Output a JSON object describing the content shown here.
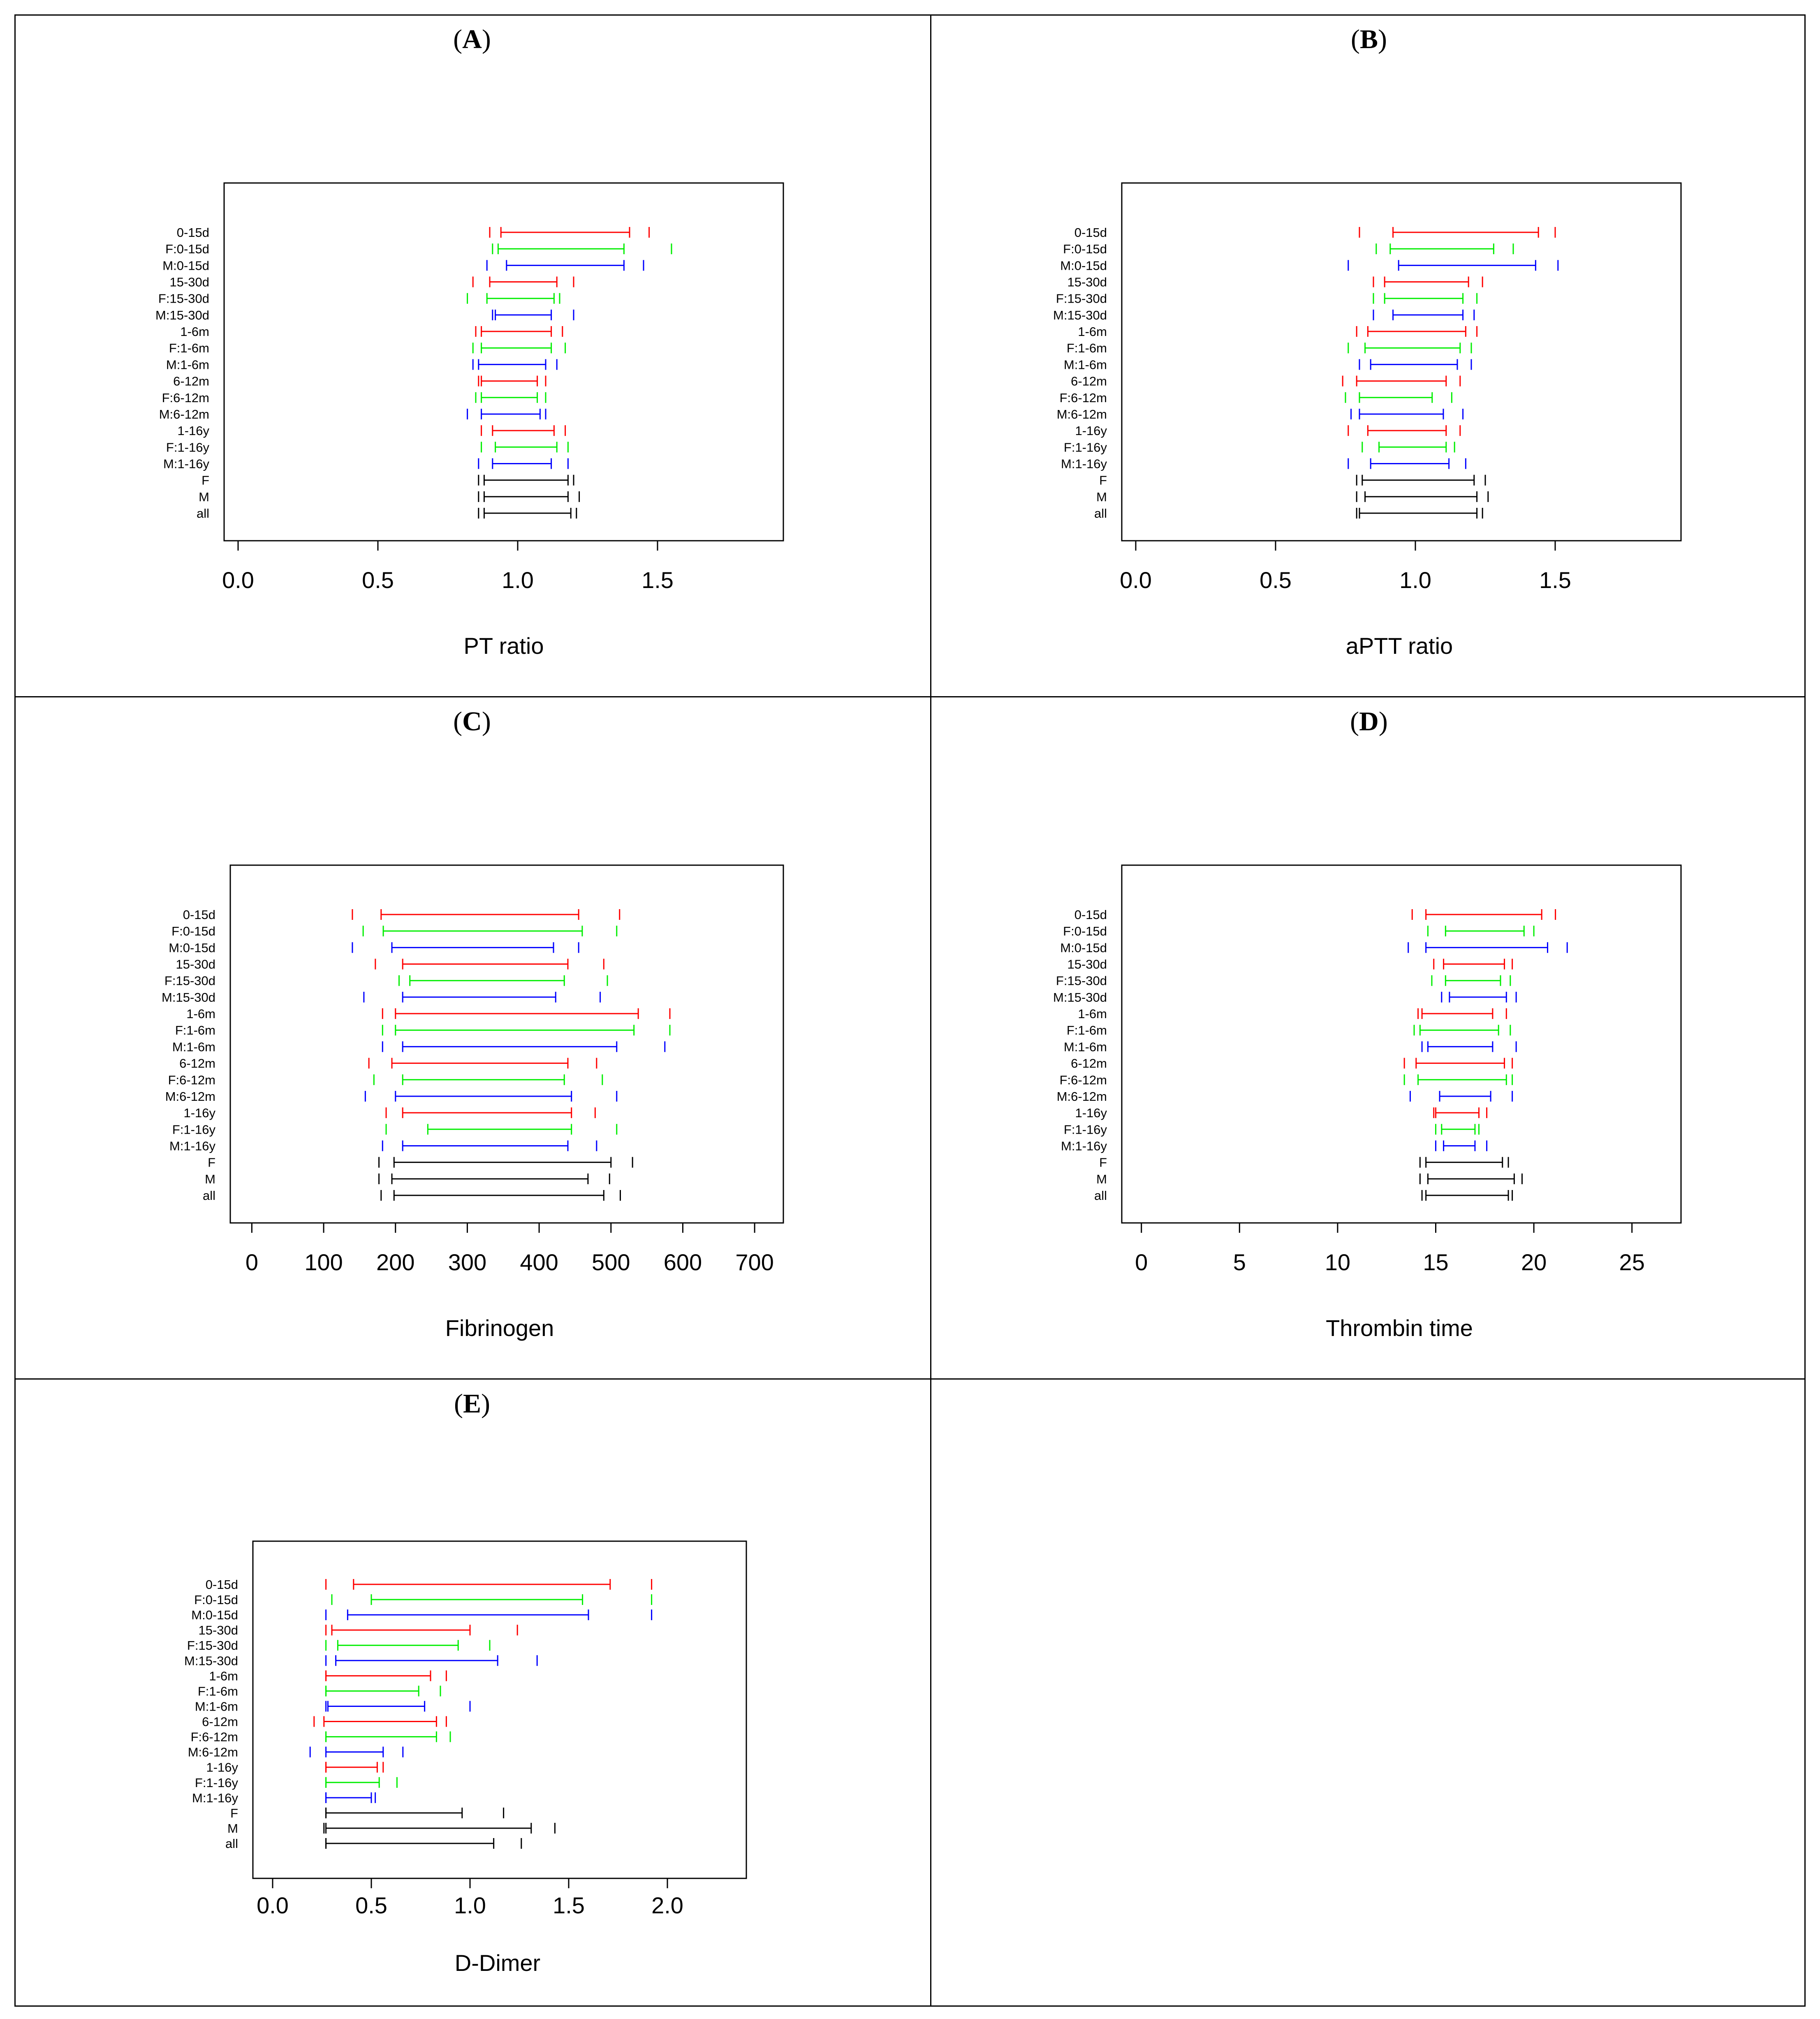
{
  "colors": {
    "red": "#ff0000",
    "green": "#00ee00",
    "blue": "#0000ff",
    "black": "#000000"
  },
  "chart_data": [
    {
      "panel": "A",
      "type": "interval",
      "xlabel": "PT ratio",
      "xlim": [
        -0.05,
        1.95
      ],
      "xticks": [
        0.0,
        0.5,
        1.0,
        1.5
      ],
      "xtick_labels": [
        "0.0",
        "0.5",
        "1.0",
        "1.5"
      ],
      "series": [
        {
          "category": "0-15d",
          "color": "red",
          "values": [
            0.9,
            0.94,
            1.4,
            1.47
          ]
        },
        {
          "category": "F:0-15d",
          "color": "green",
          "values": [
            0.91,
            0.93,
            1.38,
            1.55
          ]
        },
        {
          "category": "M:0-15d",
          "color": "blue",
          "values": [
            0.89,
            0.96,
            1.38,
            1.45
          ]
        },
        {
          "category": "15-30d",
          "color": "red",
          "values": [
            0.84,
            0.9,
            1.14,
            1.2
          ]
        },
        {
          "category": "F:15-30d",
          "color": "green",
          "values": [
            0.82,
            0.89,
            1.13,
            1.15
          ]
        },
        {
          "category": "M:15-30d",
          "color": "blue",
          "values": [
            0.91,
            0.92,
            1.12,
            1.2
          ]
        },
        {
          "category": "1-6m",
          "color": "red",
          "values": [
            0.85,
            0.87,
            1.12,
            1.16
          ]
        },
        {
          "category": "F:1-6m",
          "color": "green",
          "values": [
            0.84,
            0.87,
            1.12,
            1.17
          ]
        },
        {
          "category": "M:1-6m",
          "color": "blue",
          "values": [
            0.84,
            0.86,
            1.1,
            1.14
          ]
        },
        {
          "category": "6-12m",
          "color": "red",
          "values": [
            0.86,
            0.87,
            1.07,
            1.1
          ]
        },
        {
          "category": "F:6-12m",
          "color": "green",
          "values": [
            0.85,
            0.87,
            1.07,
            1.1
          ]
        },
        {
          "category": "M:6-12m",
          "color": "blue",
          "values": [
            0.82,
            0.87,
            1.08,
            1.1
          ]
        },
        {
          "category": "1-16y",
          "color": "red",
          "values": [
            0.87,
            0.91,
            1.13,
            1.17
          ]
        },
        {
          "category": "F:1-16y",
          "color": "green",
          "values": [
            0.87,
            0.92,
            1.14,
            1.18
          ]
        },
        {
          "category": "M:1-16y",
          "color": "blue",
          "values": [
            0.86,
            0.91,
            1.12,
            1.18
          ]
        },
        {
          "category": "F",
          "color": "black",
          "values": [
            0.86,
            0.88,
            1.18,
            1.2
          ]
        },
        {
          "category": "M",
          "color": "black",
          "values": [
            0.86,
            0.88,
            1.18,
            1.22
          ]
        },
        {
          "category": "all",
          "color": "black",
          "values": [
            0.86,
            0.88,
            1.19,
            1.21
          ]
        }
      ]
    },
    {
      "panel": "B",
      "type": "interval",
      "xlabel": "aPTT ratio",
      "xlim": [
        -0.05,
        1.95
      ],
      "xticks": [
        0.0,
        0.5,
        1.0,
        1.5
      ],
      "xtick_labels": [
        "0.0",
        "0.5",
        "1.0",
        "1.5"
      ],
      "series": [
        {
          "category": "0-15d",
          "color": "red",
          "values": [
            0.8,
            0.92,
            1.44,
            1.5
          ]
        },
        {
          "category": "F:0-15d",
          "color": "green",
          "values": [
            0.86,
            0.91,
            1.28,
            1.35
          ]
        },
        {
          "category": "M:0-15d",
          "color": "blue",
          "values": [
            0.76,
            0.94,
            1.43,
            1.51
          ]
        },
        {
          "category": "15-30d",
          "color": "red",
          "values": [
            0.85,
            0.89,
            1.19,
            1.24
          ]
        },
        {
          "category": "F:15-30d",
          "color": "green",
          "values": [
            0.85,
            0.89,
            1.17,
            1.22
          ]
        },
        {
          "category": "M:15-30d",
          "color": "blue",
          "values": [
            0.85,
            0.92,
            1.17,
            1.21
          ]
        },
        {
          "category": "1-6m",
          "color": "red",
          "values": [
            0.79,
            0.83,
            1.18,
            1.22
          ]
        },
        {
          "category": "F:1-6m",
          "color": "green",
          "values": [
            0.76,
            0.82,
            1.16,
            1.2
          ]
        },
        {
          "category": "M:1-6m",
          "color": "blue",
          "values": [
            0.8,
            0.84,
            1.15,
            1.2
          ]
        },
        {
          "category": "6-12m",
          "color": "red",
          "values": [
            0.74,
            0.79,
            1.11,
            1.16
          ]
        },
        {
          "category": "F:6-12m",
          "color": "green",
          "values": [
            0.75,
            0.8,
            1.06,
            1.13
          ]
        },
        {
          "category": "M:6-12m",
          "color": "blue",
          "values": [
            0.77,
            0.8,
            1.1,
            1.17
          ]
        },
        {
          "category": "1-16y",
          "color": "red",
          "values": [
            0.76,
            0.83,
            1.11,
            1.16
          ]
        },
        {
          "category": "F:1-16y",
          "color": "green",
          "values": [
            0.81,
            0.87,
            1.11,
            1.14
          ]
        },
        {
          "category": "M:1-16y",
          "color": "blue",
          "values": [
            0.76,
            0.84,
            1.12,
            1.18
          ]
        },
        {
          "category": "F",
          "color": "black",
          "values": [
            0.79,
            0.81,
            1.21,
            1.25
          ]
        },
        {
          "category": "M",
          "color": "black",
          "values": [
            0.79,
            0.82,
            1.22,
            1.26
          ]
        },
        {
          "category": "all",
          "color": "black",
          "values": [
            0.79,
            0.8,
            1.22,
            1.24
          ]
        }
      ]
    },
    {
      "panel": "C",
      "type": "interval",
      "xlabel": "Fibrinogen",
      "xlim": [
        -30,
        740
      ],
      "xticks": [
        0,
        100,
        200,
        300,
        400,
        500,
        600,
        700
      ],
      "xtick_labels": [
        "0",
        "100",
        "200",
        "300",
        "400",
        "500",
        "600",
        "700"
      ],
      "series": [
        {
          "category": "0-15d",
          "color": "red",
          "values": [
            140,
            180,
            455,
            512
          ]
        },
        {
          "category": "F:0-15d",
          "color": "green",
          "values": [
            155,
            183,
            460,
            508
          ]
        },
        {
          "category": "M:0-15d",
          "color": "blue",
          "values": [
            140,
            195,
            420,
            455
          ]
        },
        {
          "category": "15-30d",
          "color": "red",
          "values": [
            172,
            210,
            440,
            490
          ]
        },
        {
          "category": "F:15-30d",
          "color": "green",
          "values": [
            205,
            220,
            435,
            495
          ]
        },
        {
          "category": "M:15-30d",
          "color": "blue",
          "values": [
            156,
            210,
            423,
            485
          ]
        },
        {
          "category": "1-6m",
          "color": "red",
          "values": [
            182,
            200,
            538,
            582
          ]
        },
        {
          "category": "F:1-6m",
          "color": "green",
          "values": [
            182,
            200,
            532,
            582
          ]
        },
        {
          "category": "M:1-6m",
          "color": "blue",
          "values": [
            182,
            210,
            508,
            575
          ]
        },
        {
          "category": "6-12m",
          "color": "red",
          "values": [
            163,
            195,
            440,
            480
          ]
        },
        {
          "category": "F:6-12m",
          "color": "green",
          "values": [
            170,
            210,
            435,
            488
          ]
        },
        {
          "category": "M:6-12m",
          "color": "blue",
          "values": [
            158,
            200,
            445,
            508
          ]
        },
        {
          "category": "1-16y",
          "color": "red",
          "values": [
            187,
            210,
            445,
            478
          ]
        },
        {
          "category": "F:1-16y",
          "color": "green",
          "values": [
            187,
            245,
            445,
            508
          ]
        },
        {
          "category": "M:1-16y",
          "color": "blue",
          "values": [
            182,
            210,
            440,
            480
          ]
        },
        {
          "category": "F",
          "color": "black",
          "values": [
            177,
            198,
            500,
            530
          ]
        },
        {
          "category": "M",
          "color": "black",
          "values": [
            177,
            195,
            468,
            498
          ]
        },
        {
          "category": "all",
          "color": "black",
          "values": [
            180,
            198,
            490,
            513
          ]
        }
      ]
    },
    {
      "panel": "D",
      "type": "interval",
      "xlabel": "Thrombin time",
      "xlim": [
        -1,
        27.5
      ],
      "xticks": [
        0,
        5,
        10,
        15,
        20,
        25
      ],
      "xtick_labels": [
        "0",
        "5",
        "10",
        "15",
        "20",
        "25"
      ],
      "series": [
        {
          "category": "0-15d",
          "color": "red",
          "values": [
            13.8,
            14.5,
            20.4,
            21.1
          ]
        },
        {
          "category": "F:0-15d",
          "color": "green",
          "values": [
            14.6,
            15.5,
            19.5,
            20.0
          ]
        },
        {
          "category": "M:0-15d",
          "color": "blue",
          "values": [
            13.6,
            14.5,
            20.7,
            21.7
          ]
        },
        {
          "category": "15-30d",
          "color": "red",
          "values": [
            14.9,
            15.4,
            18.5,
            18.9
          ]
        },
        {
          "category": "F:15-30d",
          "color": "green",
          "values": [
            14.8,
            15.5,
            18.3,
            18.8
          ]
        },
        {
          "category": "M:15-30d",
          "color": "blue",
          "values": [
            15.3,
            15.7,
            18.6,
            19.1
          ]
        },
        {
          "category": "1-6m",
          "color": "red",
          "values": [
            14.1,
            14.3,
            17.9,
            18.6
          ]
        },
        {
          "category": "F:1-6m",
          "color": "green",
          "values": [
            13.9,
            14.2,
            18.2,
            18.8
          ]
        },
        {
          "category": "M:1-6m",
          "color": "blue",
          "values": [
            14.3,
            14.6,
            17.9,
            19.1
          ]
        },
        {
          "category": "6-12m",
          "color": "red",
          "values": [
            13.4,
            14.0,
            18.5,
            18.9
          ]
        },
        {
          "category": "F:6-12m",
          "color": "green",
          "values": [
            13.4,
            14.1,
            18.6,
            18.9
          ]
        },
        {
          "category": "M:6-12m",
          "color": "blue",
          "values": [
            13.7,
            15.2,
            17.8,
            18.9
          ]
        },
        {
          "category": "1-16y",
          "color": "red",
          "values": [
            14.9,
            15.0,
            17.2,
            17.6
          ]
        },
        {
          "category": "F:1-16y",
          "color": "green",
          "values": [
            15.0,
            15.3,
            17.0,
            17.2
          ]
        },
        {
          "category": "M:1-16y",
          "color": "blue",
          "values": [
            15.0,
            15.4,
            17.0,
            17.6
          ]
        },
        {
          "category": "F",
          "color": "black",
          "values": [
            14.2,
            14.5,
            18.4,
            18.7
          ]
        },
        {
          "category": "M",
          "color": "black",
          "values": [
            14.2,
            14.6,
            19.0,
            19.4
          ]
        },
        {
          "category": "all",
          "color": "black",
          "values": [
            14.3,
            14.5,
            18.7,
            18.9
          ]
        }
      ]
    },
    {
      "panel": "E",
      "type": "interval",
      "xlabel": "D-Dimer",
      "xlim": [
        -0.1,
        2.4
      ],
      "xticks": [
        0.0,
        0.5,
        1.0,
        1.5,
        2.0
      ],
      "xtick_labels": [
        "0.0",
        "0.5",
        "1.0",
        "1.5",
        "2.0"
      ],
      "series": [
        {
          "category": "0-15d",
          "color": "red",
          "values": [
            0.27,
            0.41,
            1.71,
            1.92
          ]
        },
        {
          "category": "F:0-15d",
          "color": "green",
          "values": [
            0.3,
            0.5,
            1.57,
            1.92
          ]
        },
        {
          "category": "M:0-15d",
          "color": "blue",
          "values": [
            0.27,
            0.38,
            1.6,
            1.92
          ]
        },
        {
          "category": "15-30d",
          "color": "red",
          "values": [
            0.27,
            0.3,
            1.0,
            1.24
          ]
        },
        {
          "category": "F:15-30d",
          "color": "green",
          "values": [
            0.27,
            0.33,
            0.94,
            1.1
          ]
        },
        {
          "category": "M:15-30d",
          "color": "blue",
          "values": [
            0.27,
            0.32,
            1.14,
            1.34
          ]
        },
        {
          "category": "1-6m",
          "color": "red",
          "values": [
            0.27,
            0.27,
            0.8,
            0.88
          ]
        },
        {
          "category": "F:1-6m",
          "color": "green",
          "values": [
            0.27,
            0.27,
            0.74,
            0.85
          ]
        },
        {
          "category": "M:1-6m",
          "color": "blue",
          "values": [
            0.27,
            0.28,
            0.77,
            1.0
          ]
        },
        {
          "category": "6-12m",
          "color": "red",
          "values": [
            0.21,
            0.26,
            0.83,
            0.88
          ]
        },
        {
          "category": "F:6-12m",
          "color": "green",
          "values": [
            0.27,
            0.27,
            0.83,
            0.9
          ]
        },
        {
          "category": "M:6-12m",
          "color": "blue",
          "values": [
            0.19,
            0.27,
            0.56,
            0.66
          ]
        },
        {
          "category": "1-16y",
          "color": "red",
          "values": [
            0.27,
            0.27,
            0.53,
            0.56
          ]
        },
        {
          "category": "F:1-16y",
          "color": "green",
          "values": [
            0.27,
            0.27,
            0.54,
            0.63
          ]
        },
        {
          "category": "M:1-16y",
          "color": "blue",
          "values": [
            0.27,
            0.27,
            0.5,
            0.52
          ]
        },
        {
          "category": "F",
          "color": "black",
          "values": [
            0.27,
            0.27,
            0.96,
            1.17
          ]
        },
        {
          "category": "M",
          "color": "black",
          "values": [
            0.26,
            0.27,
            1.31,
            1.43
          ]
        },
        {
          "category": "all",
          "color": "black",
          "values": [
            0.27,
            0.27,
            1.12,
            1.26
          ]
        }
      ]
    }
  ]
}
